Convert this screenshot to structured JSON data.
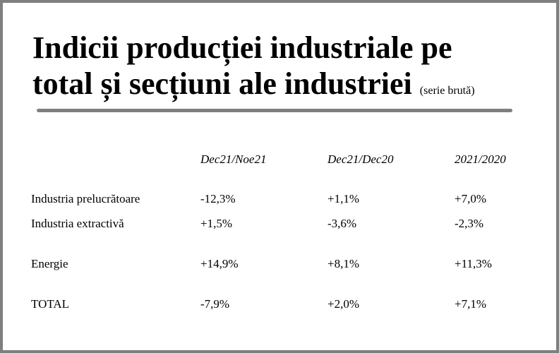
{
  "title": {
    "line1": "Indicii producției industriale pe",
    "line2": "total și secțiuni ale industriei",
    "note": "(serie brută)"
  },
  "table": {
    "columns": [
      "Dec21/Noe21",
      "Dec21/Dec20",
      "2021/2020"
    ],
    "rows": [
      {
        "label": "Industria prelucrătoare",
        "values": [
          "-12,3%",
          "+1,1%",
          "+7,0%"
        ]
      },
      {
        "label": "Industria extractivă",
        "values": [
          "+1,5%",
          "-3,6%",
          "-2,3%"
        ]
      },
      {
        "label": "Energie",
        "values": [
          "+14,9%",
          "+8,1%",
          "+11,3%"
        ]
      },
      {
        "label": "TOTAL",
        "values": [
          "-7,9%",
          "+2,0%",
          "+7,1%"
        ]
      }
    ]
  },
  "colors": {
    "frame": "#7f7f7f",
    "rule": "#7f7f7f",
    "text": "#000000"
  }
}
